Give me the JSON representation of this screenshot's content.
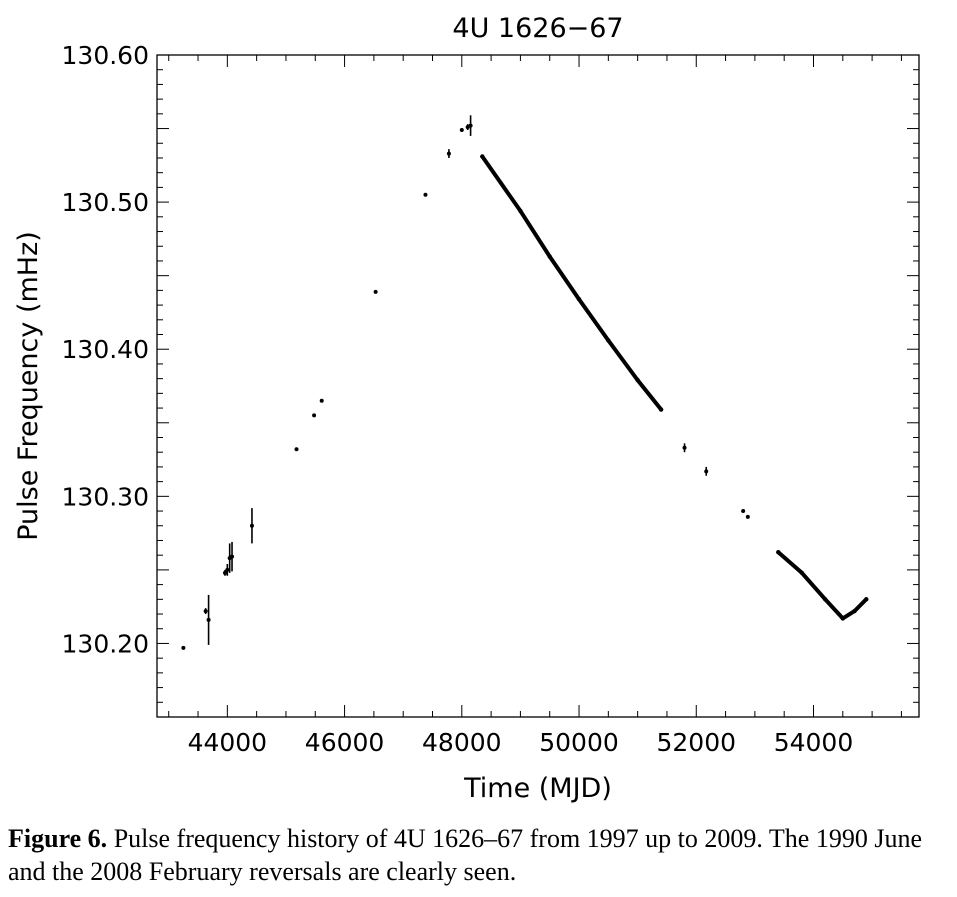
{
  "caption": {
    "label": "Figure 6.",
    "text": "Pulse frequency history of 4U 1626–67 from 1997 up to 2009. The 1990 June and the 2008 February reversals are clearly seen."
  },
  "chart_data": {
    "type": "scatter",
    "title": "4U 1626−67",
    "xlabel": "Time (MJD)",
    "ylabel": "Pulse Frequency (mHz)",
    "xlim": [
      42800,
      55800
    ],
    "ylim": [
      130.15,
      130.6
    ],
    "xticks": [
      44000,
      46000,
      48000,
      50000,
      52000,
      54000
    ],
    "xtick_labels": [
      "44000",
      "46000",
      "48000",
      "50000",
      "52000",
      "54000"
    ],
    "yticks": [
      130.2,
      130.3,
      130.4,
      130.5,
      130.6
    ],
    "ytick_labels": [
      "130.20",
      "130.30",
      "130.40",
      "130.50",
      "130.60"
    ],
    "grid": false,
    "series": [
      {
        "points": [
          {
            "x": 43250,
            "y": 130.197,
            "err": 0.001
          },
          {
            "x": 43630,
            "y": 130.222,
            "err": 0.002
          },
          {
            "x": 43680,
            "y": 130.216,
            "err": 0.017
          },
          {
            "x": 43960,
            "y": 130.248,
            "err": 0.002
          },
          {
            "x": 44000,
            "y": 130.25,
            "err": 0.004
          },
          {
            "x": 44040,
            "y": 130.258,
            "err": 0.01
          },
          {
            "x": 44080,
            "y": 130.259,
            "err": 0.01
          },
          {
            "x": 44420,
            "y": 130.28,
            "err": 0.012
          },
          {
            "x": 45180,
            "y": 130.332,
            "err": 0.001
          },
          {
            "x": 45480,
            "y": 130.355,
            "err": 0.001
          },
          {
            "x": 45610,
            "y": 130.365,
            "err": 0.001
          },
          {
            "x": 46530,
            "y": 130.439,
            "err": 0.001
          },
          {
            "x": 47380,
            "y": 130.505,
            "err": 0.001
          },
          {
            "x": 47780,
            "y": 130.533,
            "err": 0.003
          },
          {
            "x": 48000,
            "y": 130.549,
            "err": 0.001
          },
          {
            "x": 48100,
            "y": 130.551,
            "err": 0.002
          },
          {
            "x": 48150,
            "y": 130.552,
            "err": 0.007
          }
        ]
      },
      {
        "points": [
          {
            "x": 48350,
            "y": 130.531
          },
          {
            "x": 49000,
            "y": 130.494
          },
          {
            "x": 49500,
            "y": 130.463
          },
          {
            "x": 50000,
            "y": 130.434
          },
          {
            "x": 50500,
            "y": 130.406
          },
          {
            "x": 51000,
            "y": 130.379
          },
          {
            "x": 51400,
            "y": 130.359
          }
        ]
      },
      {
        "points": [
          {
            "x": 51800,
            "y": 130.333,
            "err": 0.003
          },
          {
            "x": 52170,
            "y": 130.317,
            "err": 0.003
          },
          {
            "x": 52800,
            "y": 130.29,
            "err": 0.001
          },
          {
            "x": 52880,
            "y": 130.286,
            "err": 0.001
          }
        ]
      },
      {
        "points": [
          {
            "x": 53400,
            "y": 130.262
          },
          {
            "x": 53800,
            "y": 130.248
          },
          {
            "x": 54200,
            "y": 130.23
          },
          {
            "x": 54500,
            "y": 130.217
          },
          {
            "x": 54700,
            "y": 130.222
          },
          {
            "x": 54900,
            "y": 130.23
          }
        ]
      }
    ]
  }
}
